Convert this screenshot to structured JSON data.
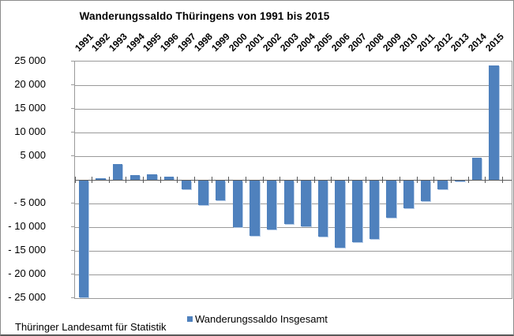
{
  "title": "Wanderungssaldo Thüringens von 1991 bis 2015",
  "source": "Thüringer Landesamt für Statistik",
  "legend": {
    "label": "Wanderungssaldo Insgesamt",
    "swatch_color": "#4F81BD"
  },
  "y_axis": {
    "zero_label_shown": false,
    "ticks": [
      {
        "value": 25000,
        "label": "25 000"
      },
      {
        "value": 20000,
        "label": "20 000"
      },
      {
        "value": 15000,
        "label": "15 000"
      },
      {
        "value": 10000,
        "label": "10 000"
      },
      {
        "value": 5000,
        "label": "5 000"
      },
      {
        "value": -5000,
        "label": "- 5 000"
      },
      {
        "value": -10000,
        "label": "- 10 000"
      },
      {
        "value": -15000,
        "label": "- 15 000"
      },
      {
        "value": -20000,
        "label": "- 20 000"
      },
      {
        "value": -25000,
        "label": "- 25 000"
      }
    ]
  },
  "chart_data": {
    "type": "bar",
    "title": "Wanderungssaldo Thüringens von 1991 bis 2015",
    "series_name": "Wanderungssaldo Insgesamt",
    "categories": [
      "1991",
      "1992",
      "1993",
      "1994",
      "1995",
      "1996",
      "1997",
      "1998",
      "1999",
      "2000",
      "2001",
      "2002",
      "2003",
      "2004",
      "2005",
      "2006",
      "2007",
      "2008",
      "2009",
      "2010",
      "2011",
      "2012",
      "2013",
      "2014",
      "2015"
    ],
    "values": [
      -24600,
      400,
      3400,
      1000,
      1100,
      600,
      -1900,
      -5100,
      -4100,
      -9900,
      -11650,
      -10250,
      -9150,
      -9600,
      -11750,
      -14100,
      -13000,
      -12400,
      -7900,
      -5800,
      -4300,
      -1750,
      -150,
      4600,
      24200
    ],
    "ylim": [
      -25000,
      25000
    ],
    "ytick_interval": 5000,
    "bar_color": "#4F81BD",
    "grid": true,
    "legend_position": "bottom",
    "x_labels_position": "top",
    "x_labels_rotation": 45,
    "source": "Thüringer Landesamt für Statistik"
  }
}
